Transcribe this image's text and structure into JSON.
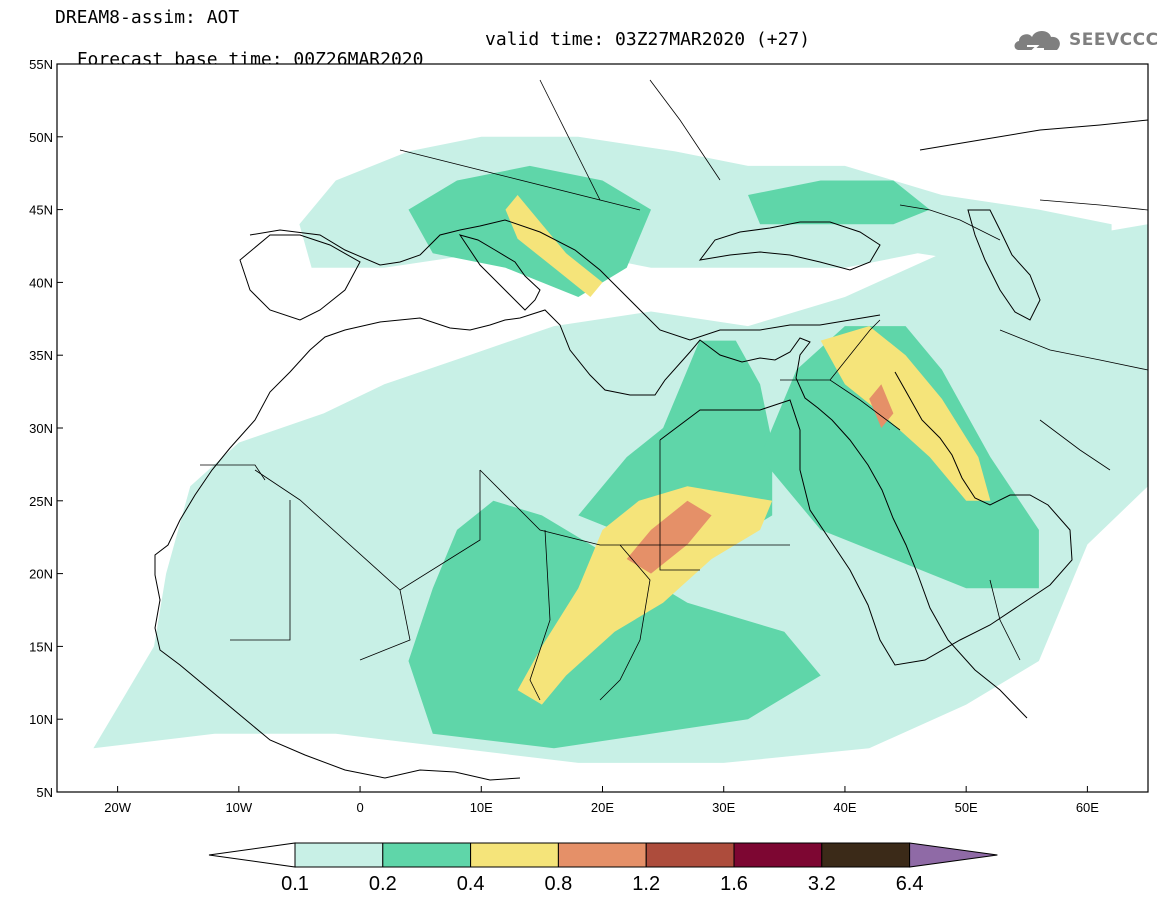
{
  "title": {
    "line1": "DREAM8-assim: AOT",
    "base_time": "Forecast base time: 00Z26MAR2020",
    "valid_time": "valid time: 03Z27MAR2020 (+27)"
  },
  "logo": {
    "text": "SEEVCCC",
    "icon": "cloud-icon"
  },
  "map": {
    "projection": "lat-lon",
    "lon_range": [
      -25,
      65
    ],
    "lat_range": [
      5,
      55
    ],
    "lon_ticks": [
      {
        "value": -20,
        "label": "20W"
      },
      {
        "value": -10,
        "label": "10W"
      },
      {
        "value": 0,
        "label": "0"
      },
      {
        "value": 10,
        "label": "10E"
      },
      {
        "value": 20,
        "label": "20E"
      },
      {
        "value": 30,
        "label": "30E"
      },
      {
        "value": 40,
        "label": "40E"
      },
      {
        "value": 50,
        "label": "50E"
      },
      {
        "value": 60,
        "label": "60E"
      }
    ],
    "lat_ticks": [
      {
        "value": 5,
        "label": "5N"
      },
      {
        "value": 10,
        "label": "10N"
      },
      {
        "value": 15,
        "label": "15N"
      },
      {
        "value": 20,
        "label": "20N"
      },
      {
        "value": 25,
        "label": "25N"
      },
      {
        "value": 30,
        "label": "30N"
      },
      {
        "value": 35,
        "label": "35N"
      },
      {
        "value": 40,
        "label": "40N"
      },
      {
        "value": 45,
        "label": "45N"
      },
      {
        "value": 50,
        "label": "50N"
      },
      {
        "value": 55,
        "label": "55N"
      }
    ],
    "aot_regions": [
      {
        "level": "0.1",
        "color": "#c8f0e6",
        "points": [
          [
            -22,
            8
          ],
          [
            -17,
            15
          ],
          [
            -16,
            20
          ],
          [
            -14,
            26
          ],
          [
            -10,
            29
          ],
          [
            -3,
            31
          ],
          [
            2,
            33
          ],
          [
            9,
            35
          ],
          [
            16,
            37
          ],
          [
            24,
            38
          ],
          [
            32,
            37
          ],
          [
            40,
            39
          ],
          [
            48,
            42
          ],
          [
            58,
            43
          ],
          [
            65,
            44
          ],
          [
            65,
            26
          ],
          [
            60,
            22
          ],
          [
            56,
            14
          ],
          [
            50,
            11
          ],
          [
            42,
            8
          ],
          [
            30,
            7
          ],
          [
            18,
            7
          ],
          [
            8,
            8
          ],
          [
            -2,
            9
          ],
          [
            -12,
            9
          ]
        ]
      },
      {
        "level": "0.1",
        "color": "#c8f0e6",
        "points": [
          [
            -5,
            44
          ],
          [
            -2,
            47
          ],
          [
            4,
            49
          ],
          [
            10,
            50
          ],
          [
            18,
            50
          ],
          [
            26,
            49
          ],
          [
            32,
            48
          ],
          [
            40,
            48
          ],
          [
            48,
            46
          ],
          [
            56,
            45
          ],
          [
            62,
            44
          ],
          [
            62,
            42
          ],
          [
            54,
            41
          ],
          [
            46,
            42
          ],
          [
            40,
            41
          ],
          [
            32,
            41
          ],
          [
            24,
            41
          ],
          [
            18,
            42
          ],
          [
            10,
            42
          ],
          [
            2,
            41
          ],
          [
            -4,
            41
          ]
        ]
      },
      {
        "level": "0.2",
        "color": "#5fd6a9",
        "points": [
          [
            6,
            9
          ],
          [
            4,
            14
          ],
          [
            6,
            19
          ],
          [
            8,
            23
          ],
          [
            11,
            25
          ],
          [
            15,
            24
          ],
          [
            19,
            22
          ],
          [
            23,
            20
          ],
          [
            27,
            18
          ],
          [
            31,
            17
          ],
          [
            35,
            16
          ],
          [
            38,
            13
          ],
          [
            32,
            10
          ],
          [
            24,
            9
          ],
          [
            16,
            8
          ]
        ]
      },
      {
        "level": "0.2",
        "color": "#5fd6a9",
        "points": [
          [
            18,
            24
          ],
          [
            22,
            28
          ],
          [
            25,
            30
          ],
          [
            27,
            34
          ],
          [
            28,
            36
          ],
          [
            31,
            36
          ],
          [
            33,
            33
          ],
          [
            34,
            29
          ],
          [
            34,
            24
          ],
          [
            30,
            22
          ],
          [
            24,
            22
          ]
        ]
      },
      {
        "level": "0.2",
        "color": "#5fd6a9",
        "points": [
          [
            33,
            28
          ],
          [
            36,
            34
          ],
          [
            40,
            37
          ],
          [
            45,
            37
          ],
          [
            48,
            34
          ],
          [
            52,
            28
          ],
          [
            56,
            23
          ],
          [
            56,
            19
          ],
          [
            50,
            19
          ],
          [
            44,
            21
          ],
          [
            38,
            23
          ]
        ]
      },
      {
        "level": "0.2",
        "color": "#5fd6a9",
        "points": [
          [
            4,
            45
          ],
          [
            8,
            47
          ],
          [
            14,
            48
          ],
          [
            20,
            47
          ],
          [
            24,
            45
          ],
          [
            22,
            41
          ],
          [
            18,
            39
          ],
          [
            12,
            41
          ],
          [
            6,
            42
          ]
        ]
      },
      {
        "level": "0.2",
        "color": "#5fd6a9",
        "points": [
          [
            32,
            46
          ],
          [
            38,
            47
          ],
          [
            44,
            47
          ],
          [
            47,
            45
          ],
          [
            44,
            44
          ],
          [
            38,
            44
          ],
          [
            33,
            44
          ]
        ]
      },
      {
        "level": "0.4",
        "color": "#f5e47a",
        "points": [
          [
            13,
            12
          ],
          [
            15,
            15
          ],
          [
            18,
            19
          ],
          [
            20,
            23
          ],
          [
            23,
            25
          ],
          [
            27,
            26
          ],
          [
            34,
            25
          ],
          [
            33,
            23
          ],
          [
            29,
            21
          ],
          [
            25,
            18
          ],
          [
            21,
            16
          ],
          [
            17,
            13
          ],
          [
            15,
            11
          ]
        ]
      },
      {
        "level": "0.4",
        "color": "#f5e47a",
        "points": [
          [
            38,
            36
          ],
          [
            42,
            37
          ],
          [
            45,
            35
          ],
          [
            48,
            32
          ],
          [
            51,
            28
          ],
          [
            52,
            25
          ],
          [
            50,
            25
          ],
          [
            47,
            28
          ],
          [
            43,
            31
          ],
          [
            40,
            33
          ]
        ]
      },
      {
        "level": "0.4",
        "color": "#f5e47a",
        "points": [
          [
            13,
            46
          ],
          [
            15,
            44
          ],
          [
            17,
            42
          ],
          [
            20,
            40
          ],
          [
            19,
            39
          ],
          [
            16,
            41
          ],
          [
            13,
            43
          ],
          [
            12,
            45
          ]
        ]
      },
      {
        "level": "0.8",
        "color": "#e59068",
        "points": [
          [
            22,
            21
          ],
          [
            24,
            23
          ],
          [
            27,
            25
          ],
          [
            29,
            24
          ],
          [
            27,
            22
          ],
          [
            24,
            20
          ]
        ]
      },
      {
        "level": "0.8",
        "color": "#e59068",
        "points": [
          [
            42,
            32
          ],
          [
            43,
            33
          ],
          [
            44,
            31
          ],
          [
            43,
            30
          ]
        ]
      }
    ]
  },
  "legend": {
    "bins": [
      {
        "label": "0.1",
        "color": "#c8f0e6"
      },
      {
        "label": "0.2",
        "color": "#5fd6a9"
      },
      {
        "label": "0.4",
        "color": "#f5e47a"
      },
      {
        "label": "0.8",
        "color": "#e59068"
      },
      {
        "label": "1.2",
        "color": "#ad4c3c"
      },
      {
        "label": "1.6",
        "color": "#7d0632"
      },
      {
        "label": "3.2",
        "color": "#3b2a18"
      },
      {
        "label": "6.4",
        "color": "#8f6aa6"
      }
    ],
    "under_color": "#ffffff",
    "labels": [
      "0.1",
      "0.2",
      "0.4",
      "0.8",
      "1.2",
      "1.6",
      "3.2",
      "6.4"
    ]
  }
}
